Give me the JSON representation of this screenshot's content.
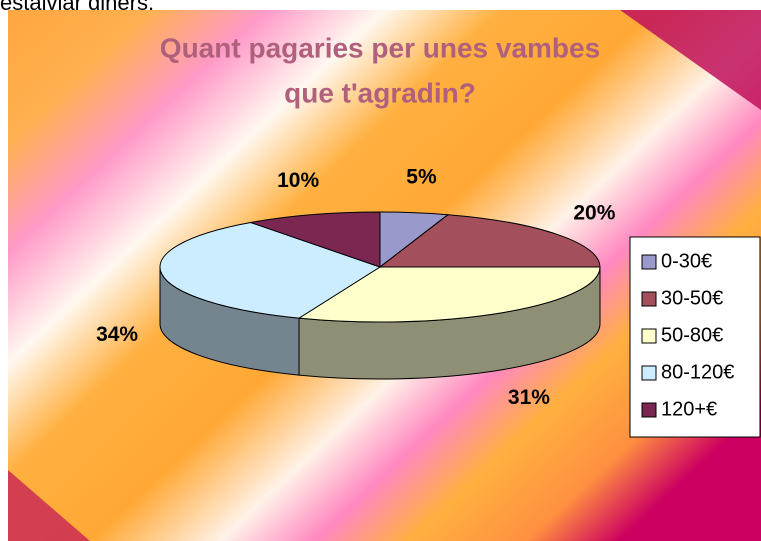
{
  "page_text": "estalviar diners.",
  "chart_data": {
    "type": "pie",
    "title": [
      "Quant pagaries per unes vambes",
      "que t'agradin?"
    ],
    "categories": [
      "0-30€",
      "30-50€",
      "50-80€",
      "80-120€",
      "120+€"
    ],
    "values": [
      5,
      20,
      31,
      34,
      10
    ],
    "value_labels": [
      "5%",
      "20%",
      "31%",
      "34%",
      "10%"
    ],
    "colors": [
      "#9999cc",
      "#a3505c",
      "#ffffcc",
      "#ccecff",
      "#7a2852"
    ],
    "legend": "right",
    "three_d": true
  }
}
